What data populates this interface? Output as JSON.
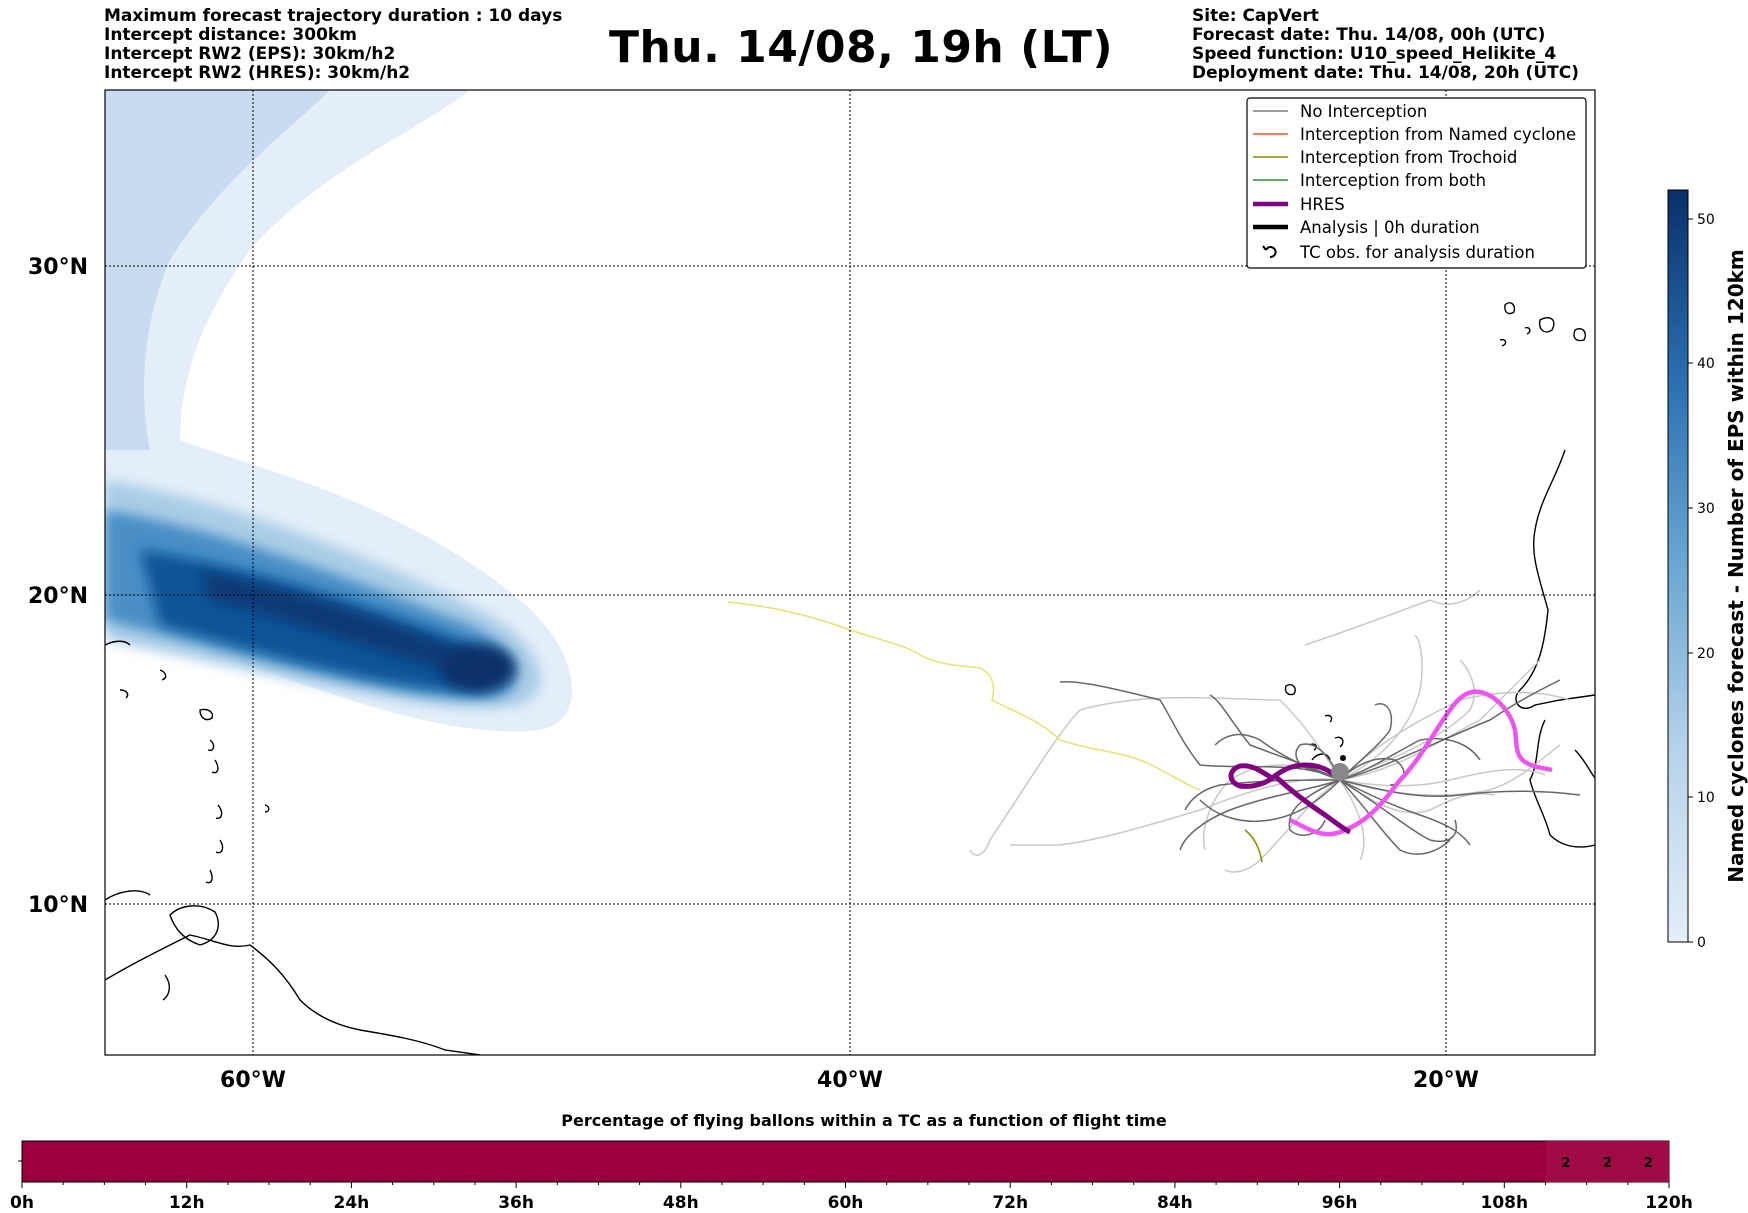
{
  "header_left": [
    "Maximum forecast trajectory duration : 10 days",
    "Intercept distance: 300km",
    "Intercept RW2 (EPS):  30km/h2",
    "Intercept RW2 (HRES): 30km/h2"
  ],
  "title": "Thu. 14/08, 19h (LT)",
  "header_right": [
    "Site: CapVert",
    "Forecast date: Thu. 14/08, 00h (UTC)",
    "Speed function: U10_speed_Helikite_4",
    "Deployment date: Thu. 14/08, 20h (UTC)"
  ],
  "map": {
    "lon_labels": [
      "60°W",
      "40°W",
      "20°W"
    ],
    "lat_labels": [
      "30°N",
      "20°N",
      "10°N"
    ],
    "gridlines": "dotted",
    "legend": {
      "placement": "top-right",
      "entries": [
        {
          "label": "No Interception",
          "color": "#7f7f7f",
          "style": "thin-line"
        },
        {
          "label": "Interception from Named cyclone",
          "color": "#e8542a",
          "style": "thin-line"
        },
        {
          "label": "Interception from Trochoid",
          "color": "#8a8a00",
          "style": "thin-line"
        },
        {
          "label": "Interception from both",
          "color": "#2e8b2e",
          "style": "thin-line"
        },
        {
          "label": "HRES",
          "color": "#800080",
          "style": "thick-line"
        },
        {
          "label": "Analysis | 0h duration",
          "color": "#000000",
          "style": "thick-line"
        },
        {
          "label": "TC obs. for analysis duration",
          "color": "#000000",
          "style": "cyclone-icon"
        }
      ]
    },
    "track_colors": {
      "eps_no_interception": "#666666",
      "eps_light": "#c8c8c8",
      "trochoid": "#e8e070",
      "hres": "#800080",
      "hres_later": "#ee55ee"
    }
  },
  "colorbar": {
    "label": "Named cyclones forecast - Number of EPS within 120km",
    "ticks": [
      "0",
      "10",
      "20",
      "30",
      "40",
      "50"
    ],
    "min": 0,
    "max": 52,
    "colors": [
      "#e3eef9",
      "#08306b"
    ]
  },
  "flight_bar": {
    "title": "Percentage of flying ballons within a TC as a function of flight time",
    "color": "#9b003c",
    "ticks": [
      "0h",
      "12h",
      "24h",
      "36h",
      "48h",
      "60h",
      "72h",
      "84h",
      "96h",
      "108h",
      "120h"
    ],
    "cell_values": [
      {
        "flight_hour": 114,
        "value": "2"
      },
      {
        "flight_hour": 117,
        "value": "2"
      },
      {
        "flight_hour": 120,
        "value": "2"
      }
    ]
  }
}
